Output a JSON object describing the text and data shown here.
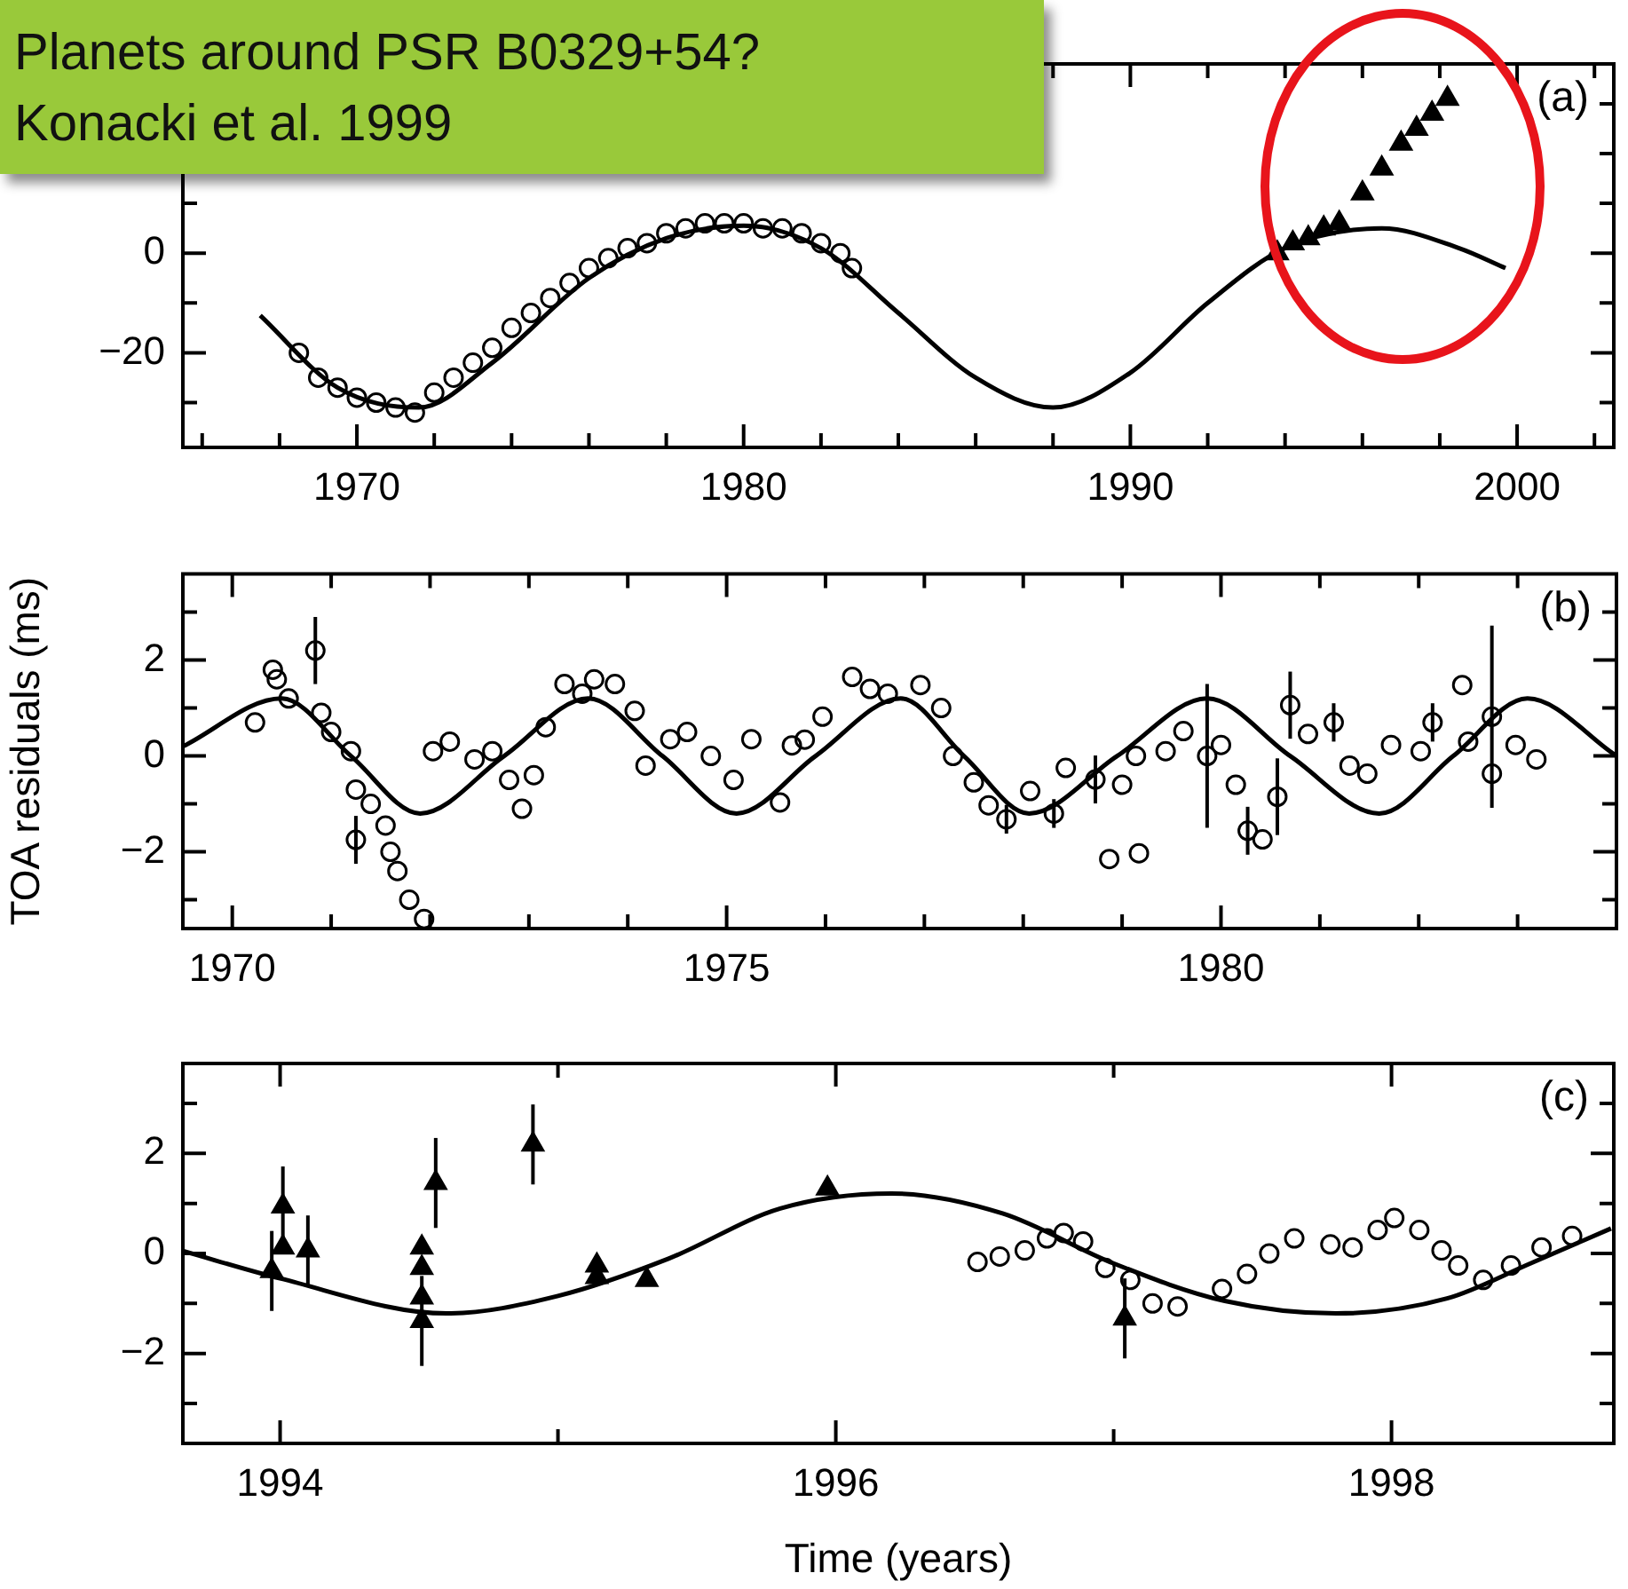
{
  "chart_data": [
    {
      "type": "scatter",
      "title": "Planets around PSR B0329+54?",
      "subtitle": "Konacki et al. 1999",
      "annotations": [
        "(a)"
      ],
      "legend": false,
      "xlim": [
        1965.5,
        2002.5
      ],
      "xticks": [
        {
          "value": 1966,
          "label": null
        },
        {
          "value": 1968,
          "label": null
        },
        1970,
        {
          "value": 1972,
          "label": null
        },
        {
          "value": 1974,
          "label": null
        },
        {
          "value": 1976,
          "label": null
        },
        {
          "value": 1978,
          "label": null
        },
        1980,
        {
          "value": 1982,
          "label": null
        },
        {
          "value": 1984,
          "label": null
        },
        {
          "value": 1986,
          "label": null
        },
        {
          "value": 1988,
          "label": null
        },
        1990,
        {
          "value": 1992,
          "label": null
        },
        {
          "value": 1994,
          "label": null
        },
        {
          "value": 1996,
          "label": null
        },
        {
          "value": 1998,
          "label": null
        },
        2000,
        {
          "value": 2002,
          "label": null
        }
      ],
      "ylim": [
        -39,
        38
      ],
      "yticks": [
        {
          "value": -30,
          "label": null
        },
        -20,
        {
          "value": -10,
          "label": null
        },
        0,
        {
          "value": 10,
          "label": null
        },
        {
          "value": 20,
          "label": null
        },
        {
          "value": 30,
          "label": null
        }
      ],
      "series": [
        {
          "type": "line",
          "marker": "none",
          "color": "#000000",
          "x": [
            1967.5,
            1969.5,
            1971.6,
            1973.5,
            1976,
            1978,
            1980,
            1982,
            1984,
            1986,
            1988,
            1990,
            1992,
            1994,
            1996.5,
            1998.5,
            1999.7
          ],
          "values": [
            -12.5,
            -27,
            -31,
            -22,
            -5,
            3,
            5.5,
            1,
            -12,
            -25,
            -31,
            -24,
            -10,
            1,
            5,
            1,
            -3
          ]
        },
        {
          "type": "scatter",
          "marker": "circle",
          "color": "#000000",
          "x": [
            1968.5,
            1969,
            1969.5,
            1970,
            1970.5,
            1971,
            1971.5,
            1972,
            1972.5,
            1973,
            1973.5,
            1974,
            1974.5,
            1975,
            1975.5,
            1976,
            1976.5,
            1977,
            1977.5,
            1978,
            1978.5,
            1979,
            1979.5,
            1980,
            1980.5,
            1981,
            1981.5,
            1982,
            1982.5,
            1982.8
          ],
          "values": [
            -20,
            -25,
            -27,
            -29,
            -30,
            -31,
            -32,
            -28,
            -25,
            -22,
            -19,
            -15,
            -12,
            -9,
            -6,
            -3,
            -1,
            1,
            2,
            4,
            5,
            6,
            6,
            6,
            5,
            5,
            4,
            2,
            0,
            -3
          ]
        },
        {
          "type": "scatter",
          "marker": "triangle",
          "color": "#000000",
          "x": [
            1993.8,
            1994.2,
            1994.6,
            1995,
            1995.4,
            1996,
            1996.5,
            1997,
            1997.4,
            1997.8,
            1998.2
          ],
          "values": [
            0,
            2,
            3,
            5,
            6,
            12,
            17,
            22,
            25,
            28,
            31
          ]
        }
      ]
    },
    {
      "type": "scatter",
      "ylabel": "TOA residuals (ms)",
      "annotations": [
        "(b)"
      ],
      "legend": false,
      "xlim": [
        1969.5,
        1984
      ],
      "xticks": [
        1970,
        {
          "value": 1971,
          "label": null
        },
        {
          "value": 1972,
          "label": null
        },
        {
          "value": 1973,
          "label": null
        },
        {
          "value": 1974,
          "label": null
        },
        1975,
        {
          "value": 1976,
          "label": null
        },
        {
          "value": 1977,
          "label": null
        },
        {
          "value": 1978,
          "label": null
        },
        {
          "value": 1979,
          "label": null
        },
        1980,
        {
          "value": 1981,
          "label": null
        },
        {
          "value": 1982,
          "label": null
        },
        {
          "value": 1983,
          "label": null
        }
      ],
      "ylim": [
        -3.6,
        3.8
      ],
      "yticks": [
        {
          "value": -3,
          "label": null
        },
        -2,
        {
          "value": -1,
          "label": null
        },
        0,
        {
          "value": 1,
          "label": null
        },
        2,
        {
          "value": 3,
          "label": null
        }
      ],
      "series": [
        {
          "type": "line",
          "marker": "none",
          "color": "#000000",
          "x": [
            1969.5,
            1970.5,
            1971.2,
            1971.9,
            1972.75,
            1973.6,
            1974.35,
            1975.1,
            1975.9,
            1976.76,
            1977.4,
            1978.06,
            1978.95,
            1979.86,
            1980.7,
            1981.6,
            1982.35,
            1983.1,
            1984
          ],
          "values": [
            0.2,
            1.2,
            0,
            -1.2,
            0,
            1.2,
            0,
            -1.2,
            0,
            1.2,
            0,
            -1.2,
            0,
            1.2,
            0,
            -1.2,
            0,
            1.2,
            0
          ]
        },
        {
          "type": "scatter",
          "marker": "circle",
          "color": "#000000",
          "x": [
            1970.23,
            1970.41,
            1970.45,
            1970.57,
            1970.84,
            1970.9,
            1971.0,
            1971.2,
            1971.25,
            1971.4,
            1971.25,
            1971.55,
            1971.6,
            1971.67,
            1971.79,
            1971.94,
            1972.03,
            1972.2,
            1972.45,
            1972.63,
            1972.8,
            1972.93,
            1973.05,
            1973.17,
            1973.36,
            1973.54,
            1973.66,
            1973.87,
            1974.07,
            1974.18,
            1974.43,
            1974.6,
            1974.84,
            1975.07,
            1975.25,
            1975.54,
            1975.66,
            1975.79,
            1975.97,
            1976.27,
            1976.45,
            1976.63,
            1976.96,
            1977.17,
            1977.29,
            1977.5,
            1977.65,
            1977.83,
            1978.07,
            1978.31,
            1978.43,
            1978.73,
            1978.87,
            1979.17,
            1979.0,
            1979.14,
            1979.44,
            1979.62,
            1979.86,
            1980.0,
            1980.15,
            1980.27,
            1980.42,
            1980.57,
            1980.7,
            1980.88,
            1981.14,
            1981.3,
            1981.48,
            1981.72,
            1982.02,
            1982.14,
            1982.44,
            1982.5,
            1982.74,
            1982.74,
            1982.98,
            1983.19
          ],
          "values": [
            0.7,
            1.8,
            1.6,
            1.2,
            2.2,
            0.9,
            0.5,
            0.1,
            -0.7,
            -1,
            -1.75,
            -1.45,
            -2.0,
            -2.4,
            -3.0,
            -3.4,
            0.1,
            0.3,
            -0.07,
            0.1,
            -0.5,
            -1.1,
            -0.4,
            0.6,
            1.5,
            1.3,
            1.6,
            1.5,
            0.94,
            -0.2,
            0.35,
            0.5,
            0,
            -0.5,
            0.35,
            -0.97,
            0.22,
            0.34,
            0.82,
            1.65,
            1.4,
            1.3,
            1.48,
            1.0,
            0,
            -0.55,
            -1.03,
            -1.32,
            -0.73,
            -1.2,
            -0.25,
            -0.49,
            -2.15,
            -2.03,
            -0.6,
            0,
            0.1,
            0.52,
            0,
            0.23,
            -0.6,
            -1.56,
            -1.74,
            -0.85,
            1.06,
            0.46,
            0.7,
            -0.2,
            -0.37,
            0.23,
            0.1,
            0.7,
            1.48,
            0.3,
            0.82,
            -0.37,
            0.23,
            -0.07
          ],
          "errors": [
            null,
            null,
            null,
            null,
            0.7,
            null,
            null,
            null,
            null,
            null,
            0.5,
            null,
            null,
            null,
            null,
            null,
            null,
            null,
            null,
            null,
            null,
            null,
            null,
            null,
            null,
            null,
            null,
            null,
            null,
            null,
            null,
            null,
            null,
            null,
            null,
            null,
            null,
            null,
            null,
            null,
            null,
            null,
            null,
            null,
            null,
            null,
            null,
            0.3,
            null,
            0.3,
            null,
            0.5,
            null,
            null,
            null,
            null,
            null,
            null,
            1.5,
            null,
            null,
            0.5,
            null,
            0.8,
            0.7,
            null,
            0.4,
            null,
            null,
            null,
            null,
            0.4,
            null,
            null,
            1.9,
            null,
            null,
            null
          ]
        }
      ]
    },
    {
      "type": "scatter",
      "xlabel": "Time (years)",
      "annotations": [
        "(c)"
      ],
      "legend": false,
      "xlim": [
        1993.65,
        1998.8
      ],
      "xticks": [
        1994,
        {
          "value": 1995,
          "label": null
        },
        1996,
        {
          "value": 1997,
          "label": null
        },
        1998
      ],
      "ylim": [
        -3.8,
        3.8
      ],
      "yticks": [
        {
          "value": -3,
          "label": null
        },
        -2,
        {
          "value": -1,
          "label": null
        },
        0,
        {
          "value": 1,
          "label": null
        },
        2,
        {
          "value": 3,
          "label": null
        }
      ],
      "series": [
        {
          "type": "line",
          "marker": "none",
          "color": "#000000",
          "x": [
            1993.65,
            1994.0,
            1994.6,
            1995.0,
            1995.4,
            1995.8,
            1996.2,
            1996.6,
            1997.0,
            1997.4,
            1997.8,
            1998.2,
            1998.5,
            1998.79
          ],
          "values": [
            0.05,
            -0.5,
            -1.2,
            -0.85,
            -0.1,
            0.9,
            1.2,
            0.8,
            -0.2,
            -0.95,
            -1.2,
            -0.9,
            -0.2,
            0.5
          ]
        },
        {
          "type": "scatter",
          "marker": "triangle",
          "color": "#000000",
          "x": [
            1993.97,
            1994.01,
            1994.01,
            1994.1,
            1994.51,
            1994.51,
            1994.51,
            1994.51,
            1994.56,
            1994.91,
            1995.14,
            1995.14,
            1995.32,
            1995.97,
            1997.04
          ],
          "values": [
            -0.35,
            0.94,
            0.12,
            0.06,
            0.12,
            -0.29,
            -0.88,
            -1.35,
            1.41,
            2.18,
            -0.24,
            -0.47,
            -0.53,
            1.3,
            -1.3
          ],
          "errors": [
            0.8,
            0.8,
            null,
            0.7,
            null,
            null,
            null,
            0.9,
            0.9,
            0.8,
            null,
            null,
            null,
            null,
            0.8
          ]
        },
        {
          "type": "scatter",
          "marker": "circle",
          "color": "#000000",
          "x": [
            1996.51,
            1996.59,
            1996.68,
            1996.76,
            1996.82,
            1996.89,
            1996.97,
            1997.06,
            1997.14,
            1997.23,
            1997.39,
            1997.48,
            1997.56,
            1997.65,
            1997.78,
            1997.86,
            1997.95,
            1998.01,
            1998.1,
            1998.18,
            1998.24,
            1998.33,
            1998.43,
            1998.54,
            1998.65
          ],
          "values": [
            -0.17,
            -0.06,
            0.06,
            0.3,
            0.41,
            0.24,
            -0.29,
            -0.53,
            -1.0,
            -1.06,
            -0.71,
            -0.41,
            0,
            0.3,
            0.18,
            0.12,
            0.47,
            0.71,
            0.47,
            0.06,
            -0.24,
            -0.53,
            -0.24,
            0.12,
            0.35
          ]
        }
      ]
    }
  ]
}
